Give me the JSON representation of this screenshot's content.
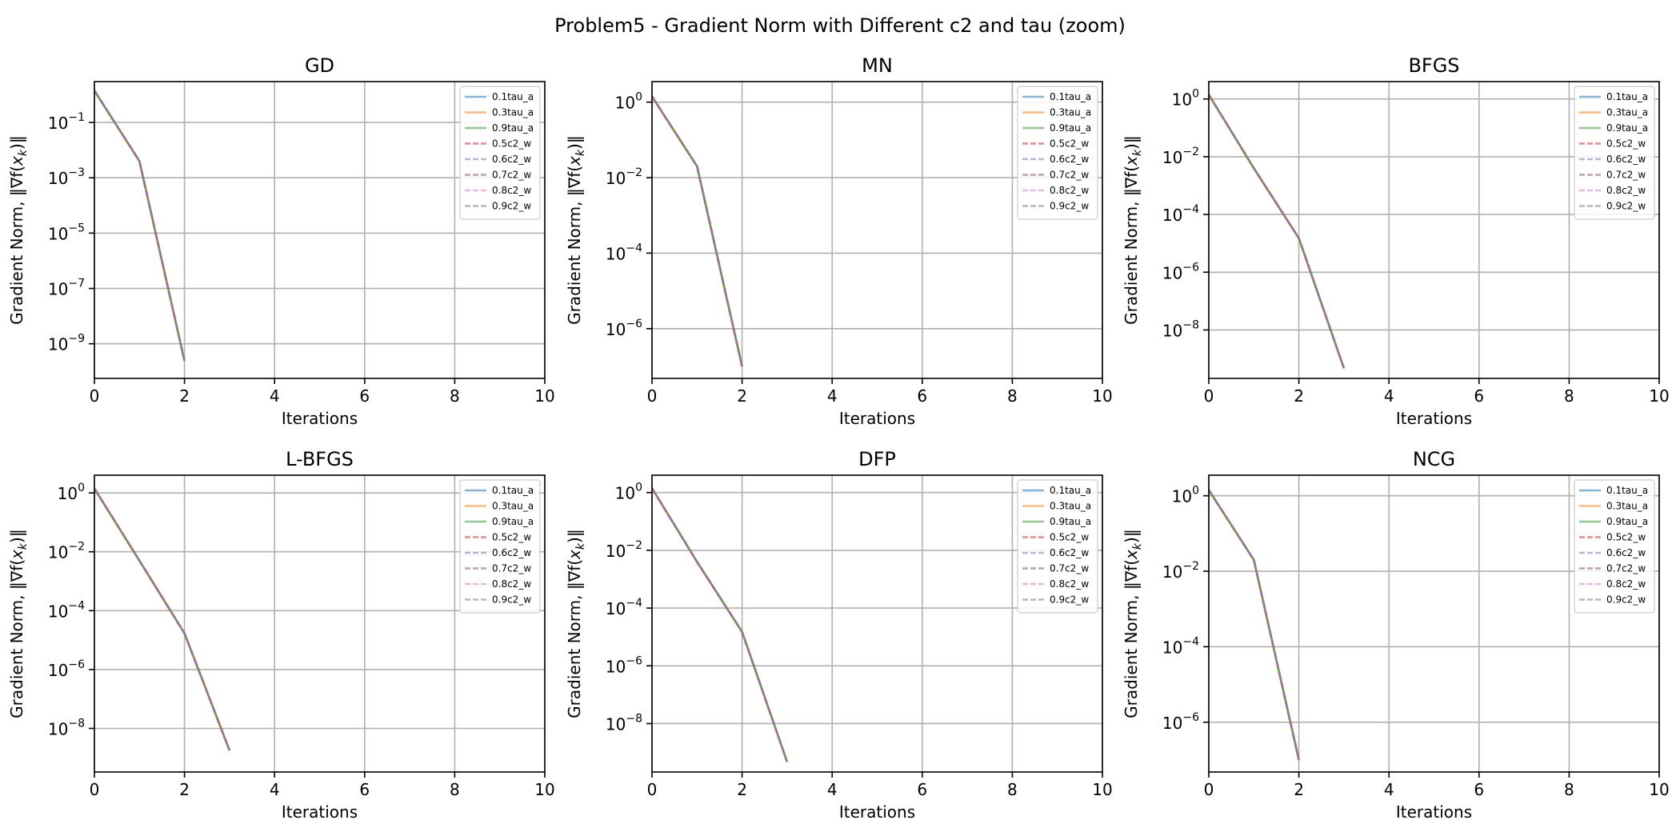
{
  "figure": {
    "suptitle": "Problem5 - Gradient Norm with Different c2 and tau (zoom)"
  },
  "chart_data": [
    {
      "type": "line",
      "title": "GD",
      "xlabel": "Iterations",
      "ylabel": "Gradient Norm, ‖∇f(x_k)‖",
      "xscale": "linear",
      "yscale": "log",
      "xlim": [
        0,
        10
      ],
      "ylim": [
        5.6e-11,
        3.0
      ],
      "xticks": [
        0,
        2,
        4,
        6,
        8,
        10
      ],
      "yticks": [
        -9,
        -7,
        -5,
        -3,
        -1
      ],
      "grid": true,
      "legend_position": "upper right",
      "series": [
        {
          "name": "0.1tau_a",
          "color": "#1f77b4",
          "linestyle": "solid",
          "x": [
            0,
            1,
            2
          ],
          "y": [
            1.41,
            0.004,
            2.4e-10
          ]
        },
        {
          "name": "0.3tau_a",
          "color": "#ff7f0e",
          "linestyle": "solid",
          "x": [
            0,
            1,
            2
          ],
          "y": [
            1.41,
            0.004,
            2.4e-10
          ]
        },
        {
          "name": "0.9tau_a",
          "color": "#2ca02c",
          "linestyle": "solid",
          "x": [
            0,
            1,
            2
          ],
          "y": [
            1.41,
            0.004,
            2.4e-10
          ]
        },
        {
          "name": "0.5c2_w",
          "color": "#d62728",
          "linestyle": "dashed",
          "x": [
            0,
            1,
            2
          ],
          "y": [
            1.41,
            0.004,
            2.4e-10
          ]
        },
        {
          "name": "0.6c2_w",
          "color": "#9467bd",
          "linestyle": "dashed",
          "x": [
            0,
            1,
            2
          ],
          "y": [
            1.41,
            0.004,
            2.4e-10
          ]
        },
        {
          "name": "0.7c2_w",
          "color": "#8c564b",
          "linestyle": "dashed",
          "x": [
            0,
            1,
            2
          ],
          "y": [
            1.41,
            0.004,
            2.4e-10
          ]
        },
        {
          "name": "0.8c2_w",
          "color": "#e377c2",
          "linestyle": "dashed",
          "x": [
            0,
            1,
            2
          ],
          "y": [
            1.41,
            0.004,
            2.4e-10
          ]
        },
        {
          "name": "0.9c2_w",
          "color": "#7f7f7f",
          "linestyle": "dashed",
          "x": [
            0,
            1,
            2
          ],
          "y": [
            1.41,
            0.004,
            2.4e-10
          ]
        }
      ]
    },
    {
      "type": "line",
      "title": "MN",
      "xlabel": "Iterations",
      "ylabel": "Gradient Norm, ‖∇f(x_k)‖",
      "xscale": "linear",
      "yscale": "log",
      "xlim": [
        0,
        10
      ],
      "ylim": [
        4.8e-08,
        3.5
      ],
      "xticks": [
        0,
        2,
        4,
        6,
        8,
        10
      ],
      "yticks": [
        -6,
        -4,
        -2,
        0
      ],
      "grid": true,
      "legend_position": "upper right",
      "series": [
        {
          "name": "0.1tau_a",
          "color": "#1f77b4",
          "linestyle": "solid",
          "x": [
            0,
            1,
            2
          ],
          "y": [
            1.41,
            0.02,
            1e-07
          ]
        },
        {
          "name": "0.3tau_a",
          "color": "#ff7f0e",
          "linestyle": "solid",
          "x": [
            0,
            1,
            2
          ],
          "y": [
            1.41,
            0.02,
            1e-07
          ]
        },
        {
          "name": "0.9tau_a",
          "color": "#2ca02c",
          "linestyle": "solid",
          "x": [
            0,
            1,
            2
          ],
          "y": [
            1.41,
            0.02,
            1e-07
          ]
        },
        {
          "name": "0.5c2_w",
          "color": "#d62728",
          "linestyle": "dashed",
          "x": [
            0,
            1,
            2
          ],
          "y": [
            1.41,
            0.02,
            1e-07
          ]
        },
        {
          "name": "0.6c2_w",
          "color": "#9467bd",
          "linestyle": "dashed",
          "x": [
            0,
            1,
            2
          ],
          "y": [
            1.41,
            0.02,
            1e-07
          ]
        },
        {
          "name": "0.7c2_w",
          "color": "#8c564b",
          "linestyle": "dashed",
          "x": [
            0,
            1,
            2
          ],
          "y": [
            1.41,
            0.02,
            1e-07
          ]
        },
        {
          "name": "0.8c2_w",
          "color": "#e377c2",
          "linestyle": "dashed",
          "x": [
            0,
            1,
            2
          ],
          "y": [
            1.41,
            0.02,
            1e-07
          ]
        },
        {
          "name": "0.9c2_w",
          "color": "#7f7f7f",
          "linestyle": "dashed",
          "x": [
            0,
            1,
            2
          ],
          "y": [
            1.41,
            0.02,
            1e-07
          ]
        }
      ]
    },
    {
      "type": "line",
      "title": "BFGS",
      "xlabel": "Iterations",
      "ylabel": "Gradient Norm, ‖∇f(x_k)‖",
      "xscale": "linear",
      "yscale": "log",
      "xlim": [
        0,
        10
      ],
      "ylim": [
        2.1e-10,
        4.0
      ],
      "xticks": [
        0,
        2,
        4,
        6,
        8,
        10
      ],
      "yticks": [
        -8,
        -6,
        -4,
        -2,
        0
      ],
      "grid": true,
      "legend_position": "upper right",
      "series": [
        {
          "name": "0.1tau_a",
          "color": "#1f77b4",
          "linestyle": "solid",
          "x": [
            0,
            1,
            2,
            3
          ],
          "y": [
            1.41,
            0.004,
            1.5e-05,
            4.7e-10
          ]
        },
        {
          "name": "0.3tau_a",
          "color": "#ff7f0e",
          "linestyle": "solid",
          "x": [
            0,
            1,
            2,
            3
          ],
          "y": [
            1.41,
            0.004,
            1.5e-05,
            4.7e-10
          ]
        },
        {
          "name": "0.9tau_a",
          "color": "#2ca02c",
          "linestyle": "solid",
          "x": [
            0,
            1,
            2,
            3
          ],
          "y": [
            1.41,
            0.004,
            1.5e-05,
            4.7e-10
          ]
        },
        {
          "name": "0.5c2_w",
          "color": "#d62728",
          "linestyle": "dashed",
          "x": [
            0,
            1,
            2,
            3
          ],
          "y": [
            1.41,
            0.004,
            1.5e-05,
            4.7e-10
          ]
        },
        {
          "name": "0.6c2_w",
          "color": "#9467bd",
          "linestyle": "dashed",
          "x": [
            0,
            1,
            2,
            3
          ],
          "y": [
            1.41,
            0.004,
            1.5e-05,
            4.7e-10
          ]
        },
        {
          "name": "0.7c2_w",
          "color": "#8c564b",
          "linestyle": "dashed",
          "x": [
            0,
            1,
            2,
            3
          ],
          "y": [
            1.41,
            0.004,
            1.5e-05,
            4.7e-10
          ]
        },
        {
          "name": "0.8c2_w",
          "color": "#e377c2",
          "linestyle": "dashed",
          "x": [
            0,
            1,
            2,
            3
          ],
          "y": [
            1.41,
            0.004,
            1.5e-05,
            4.7e-10
          ]
        },
        {
          "name": "0.9c2_w",
          "color": "#7f7f7f",
          "linestyle": "dashed",
          "x": [
            0,
            1,
            2,
            3
          ],
          "y": [
            1.41,
            0.004,
            1.5e-05,
            4.7e-10
          ]
        }
      ]
    },
    {
      "type": "line",
      "title": "L-BFGS",
      "xlabel": "Iterations",
      "ylabel": "Gradient Norm, ‖∇f(x_k)‖",
      "xscale": "linear",
      "yscale": "log",
      "xlim": [
        0,
        10
      ],
      "ylim": [
        3.3e-10,
        4.0
      ],
      "xticks": [
        0,
        2,
        4,
        6,
        8,
        10
      ],
      "yticks": [
        -8,
        -6,
        -4,
        -2,
        0
      ],
      "grid": true,
      "legend_position": "upper right",
      "series": [
        {
          "name": "0.1tau_a",
          "color": "#1f77b4",
          "linestyle": "solid",
          "x": [
            0,
            1,
            2,
            3
          ],
          "y": [
            1.41,
            0.005,
            1.7e-05,
            1.8e-09
          ]
        },
        {
          "name": "0.3tau_a",
          "color": "#ff7f0e",
          "linestyle": "solid",
          "x": [
            0,
            1,
            2,
            3
          ],
          "y": [
            1.41,
            0.005,
            1.7e-05,
            1.8e-09
          ]
        },
        {
          "name": "0.9tau_a",
          "color": "#2ca02c",
          "linestyle": "solid",
          "x": [
            0,
            1,
            2,
            3
          ],
          "y": [
            1.41,
            0.005,
            1.7e-05,
            1.8e-09
          ]
        },
        {
          "name": "0.5c2_w",
          "color": "#d62728",
          "linestyle": "dashed",
          "x": [
            0,
            1,
            2,
            3
          ],
          "y": [
            1.41,
            0.005,
            1.7e-05,
            1.8e-09
          ]
        },
        {
          "name": "0.6c2_w",
          "color": "#9467bd",
          "linestyle": "dashed",
          "x": [
            0,
            1,
            2,
            3
          ],
          "y": [
            1.41,
            0.005,
            1.7e-05,
            1.8e-09
          ]
        },
        {
          "name": "0.7c2_w",
          "color": "#8c564b",
          "linestyle": "dashed",
          "x": [
            0,
            1,
            2,
            3
          ],
          "y": [
            1.41,
            0.005,
            1.7e-05,
            1.8e-09
          ]
        },
        {
          "name": "0.8c2_w",
          "color": "#e377c2",
          "linestyle": "dashed",
          "x": [
            0,
            1,
            2,
            3
          ],
          "y": [
            1.41,
            0.005,
            1.7e-05,
            1.8e-09
          ]
        },
        {
          "name": "0.9c2_w",
          "color": "#7f7f7f",
          "linestyle": "dashed",
          "x": [
            0,
            1,
            2,
            3
          ],
          "y": [
            1.41,
            0.005,
            1.7e-05,
            1.8e-09
          ]
        }
      ]
    },
    {
      "type": "line",
      "title": "DFP",
      "xlabel": "Iterations",
      "ylabel": "Gradient Norm, ‖∇f(x_k)‖",
      "xscale": "linear",
      "yscale": "log",
      "xlim": [
        0,
        10
      ],
      "ylim": [
        2.1e-10,
        4.0
      ],
      "xticks": [
        0,
        2,
        4,
        6,
        8,
        10
      ],
      "yticks": [
        -8,
        -6,
        -4,
        -2,
        0
      ],
      "grid": true,
      "legend_position": "upper right",
      "series": [
        {
          "name": "0.1tau_a",
          "color": "#1f77b4",
          "linestyle": "solid",
          "x": [
            0,
            1,
            2,
            3
          ],
          "y": [
            1.41,
            0.004,
            1.5e-05,
            4.7e-10
          ]
        },
        {
          "name": "0.3tau_a",
          "color": "#ff7f0e",
          "linestyle": "solid",
          "x": [
            0,
            1,
            2,
            3
          ],
          "y": [
            1.41,
            0.004,
            1.5e-05,
            4.7e-10
          ]
        },
        {
          "name": "0.9tau_a",
          "color": "#2ca02c",
          "linestyle": "solid",
          "x": [
            0,
            1,
            2,
            3
          ],
          "y": [
            1.41,
            0.004,
            1.5e-05,
            4.7e-10
          ]
        },
        {
          "name": "0.5c2_w",
          "color": "#d62728",
          "linestyle": "dashed",
          "x": [
            0,
            1,
            2,
            3
          ],
          "y": [
            1.41,
            0.004,
            1.5e-05,
            4.7e-10
          ]
        },
        {
          "name": "0.6c2_w",
          "color": "#9467bd",
          "linestyle": "dashed",
          "x": [
            0,
            1,
            2,
            3
          ],
          "y": [
            1.41,
            0.004,
            1.5e-05,
            4.7e-10
          ]
        },
        {
          "name": "0.7c2_w",
          "color": "#8c564b",
          "linestyle": "dashed",
          "x": [
            0,
            1,
            2,
            3
          ],
          "y": [
            1.41,
            0.004,
            1.5e-05,
            4.7e-10
          ]
        },
        {
          "name": "0.8c2_w",
          "color": "#e377c2",
          "linestyle": "dashed",
          "x": [
            0,
            1,
            2,
            3
          ],
          "y": [
            1.41,
            0.004,
            1.5e-05,
            4.7e-10
          ]
        },
        {
          "name": "0.9c2_w",
          "color": "#7f7f7f",
          "linestyle": "dashed",
          "x": [
            0,
            1,
            2,
            3
          ],
          "y": [
            1.41,
            0.004,
            1.5e-05,
            4.7e-10
          ]
        }
      ]
    },
    {
      "type": "line",
      "title": "NCG",
      "xlabel": "Iterations",
      "ylabel": "Gradient Norm, ‖∇f(x_k)‖",
      "xscale": "linear",
      "yscale": "log",
      "xlim": [
        0,
        10
      ],
      "ylim": [
        4.8e-08,
        3.5
      ],
      "xticks": [
        0,
        2,
        4,
        6,
        8,
        10
      ],
      "yticks": [
        -6,
        -4,
        -2,
        0
      ],
      "grid": true,
      "legend_position": "upper right",
      "series": [
        {
          "name": "0.1tau_a",
          "color": "#1f77b4",
          "linestyle": "solid",
          "x": [
            0,
            1,
            2
          ],
          "y": [
            1.41,
            0.02,
            1e-07
          ]
        },
        {
          "name": "0.3tau_a",
          "color": "#ff7f0e",
          "linestyle": "solid",
          "x": [
            0,
            1,
            2
          ],
          "y": [
            1.41,
            0.02,
            1e-07
          ]
        },
        {
          "name": "0.9tau_a",
          "color": "#2ca02c",
          "linestyle": "solid",
          "x": [
            0,
            1,
            2
          ],
          "y": [
            1.41,
            0.02,
            1e-07
          ]
        },
        {
          "name": "0.5c2_w",
          "color": "#d62728",
          "linestyle": "dashed",
          "x": [
            0,
            1,
            2
          ],
          "y": [
            1.41,
            0.02,
            1e-07
          ]
        },
        {
          "name": "0.6c2_w",
          "color": "#9467bd",
          "linestyle": "dashed",
          "x": [
            0,
            1,
            2
          ],
          "y": [
            1.41,
            0.02,
            1e-07
          ]
        },
        {
          "name": "0.7c2_w",
          "color": "#8c564b",
          "linestyle": "dashed",
          "x": [
            0,
            1,
            2
          ],
          "y": [
            1.41,
            0.02,
            1e-07
          ]
        },
        {
          "name": "0.8c2_w",
          "color": "#e377c2",
          "linestyle": "dashed",
          "x": [
            0,
            1,
            2
          ],
          "y": [
            1.41,
            0.02,
            1e-07
          ]
        },
        {
          "name": "0.9c2_w",
          "color": "#7f7f7f",
          "linestyle": "dashed",
          "x": [
            0,
            1,
            2
          ],
          "y": [
            1.41,
            0.02,
            1e-07
          ]
        }
      ]
    }
  ]
}
